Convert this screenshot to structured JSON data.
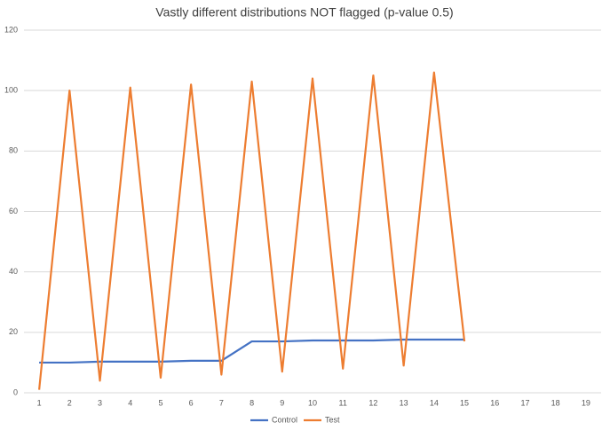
{
  "chart_data": {
    "type": "line",
    "title": "Vastly different distributions NOT flagged (p-value 0.5)",
    "categories": [
      1,
      2,
      3,
      4,
      5,
      6,
      7,
      8,
      9,
      10,
      11,
      12,
      13,
      14,
      15,
      16,
      17,
      18,
      19
    ],
    "series": [
      {
        "name": "Control",
        "color": "#4472c4",
        "values": [
          10,
          10,
          10.3,
          10.3,
          10.3,
          10.6,
          10.6,
          17,
          17,
          17.3,
          17.3,
          17.3,
          17.6,
          17.6,
          17.6,
          null,
          null,
          null,
          null
        ]
      },
      {
        "name": "Test",
        "color": "#ed7d31",
        "values": [
          1,
          100,
          4,
          101,
          5,
          102,
          6,
          103,
          7,
          104,
          8,
          105,
          9,
          106,
          17,
          null,
          null,
          null,
          null
        ]
      }
    ],
    "ylim": [
      0,
      120
    ],
    "yticks": [
      0,
      20,
      40,
      60,
      80,
      100,
      120
    ],
    "grid": true,
    "legend": "bottom"
  }
}
